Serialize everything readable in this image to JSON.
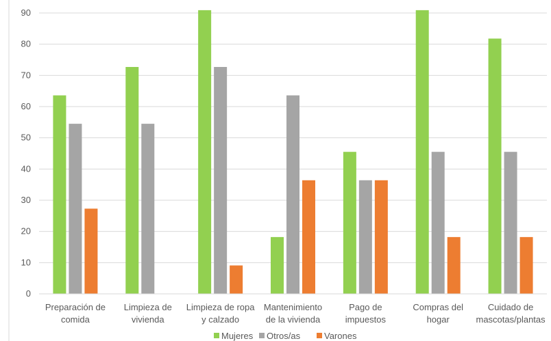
{
  "chart_data": {
    "type": "bar",
    "categories": [
      [
        "Preparación de",
        "comida"
      ],
      [
        "Limpieza de",
        "vivienda"
      ],
      [
        "Limpieza de ropa",
        "y calzado"
      ],
      [
        "Mantenimiento",
        "de la vivienda"
      ],
      [
        "Pago de",
        "impuestos"
      ],
      [
        "Compras del",
        "hogar"
      ],
      [
        "Cuidado de",
        "mascotas/plantas"
      ]
    ],
    "series": [
      {
        "name": "Mujeres",
        "color": "#92D050",
        "values": [
          63.6,
          72.7,
          90.9,
          18.2,
          45.5,
          90.9,
          81.8
        ]
      },
      {
        "name": "Otros/as",
        "color": "#A5A5A5",
        "values": [
          54.5,
          54.5,
          72.7,
          63.6,
          36.4,
          45.5,
          45.5
        ]
      },
      {
        "name": "Varones",
        "color": "#ED7D31",
        "values": [
          27.3,
          0,
          9.1,
          36.4,
          36.4,
          18.2,
          18.2
        ]
      }
    ],
    "yticks": [
      "0",
      "10",
      "20",
      "30",
      "40",
      "50",
      "60",
      "70",
      "80",
      "90"
    ],
    "ylim": [
      0,
      90
    ],
    "grid": true,
    "legend": "bottom",
    "title": "",
    "xlabel": "",
    "ylabel": ""
  }
}
